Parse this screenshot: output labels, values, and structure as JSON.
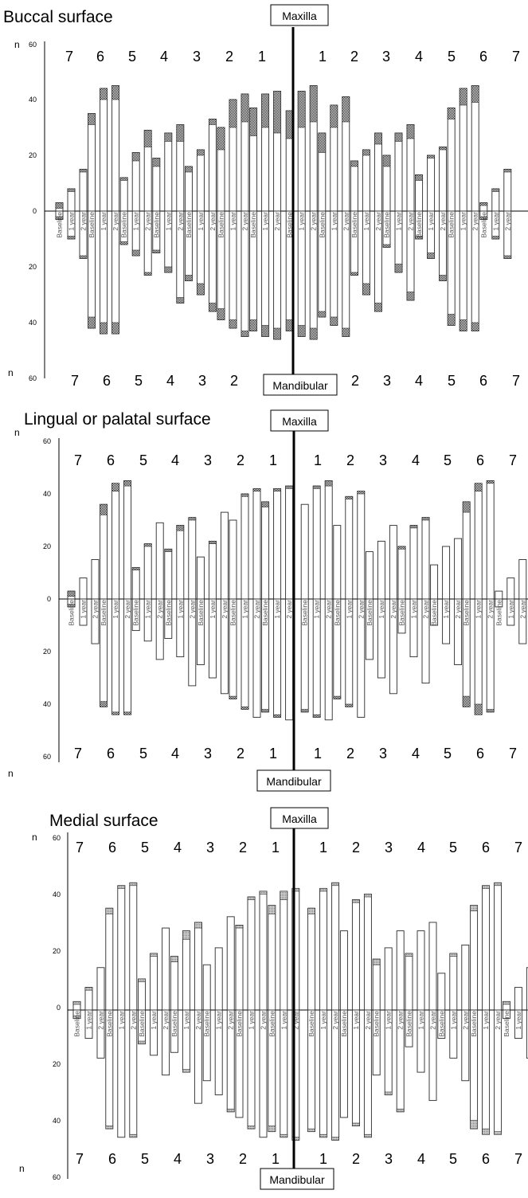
{
  "colors": {
    "bar_fill": "#ffffff",
    "bar_stroke": "#2a2a2a",
    "cap_dark": "#1c1c1c",
    "cap_grey": "#7a7a7a",
    "axis": "#000000",
    "midline": "#000000"
  },
  "chart_data": [
    {
      "type": "bar",
      "title": "Buccal surface",
      "top_label": "Maxilla",
      "bottom_label": "Mandibular",
      "ylabel_top": "n",
      "ylabel_bottom": "n",
      "yticks": [
        "60",
        "40",
        "20",
        "0",
        "20",
        "40",
        "60"
      ],
      "ylim": [
        -60,
        60
      ],
      "teeth": [
        "7",
        "6",
        "5",
        "4",
        "3",
        "2",
        "1",
        "1",
        "2",
        "3",
        "4",
        "5",
        "6",
        "7"
      ],
      "bar_labels": [
        "Baseline",
        "1 year",
        "2 year"
      ],
      "cap_style": "checker",
      "series": [
        {
          "name": "Baseline",
          "maxilla": [
            3,
            35,
            12,
            19,
            16,
            30,
            37,
            36,
            28,
            18,
            20,
            13,
            37,
            3
          ],
          "mandibular": [
            3,
            42,
            12,
            15,
            25,
            39,
            43,
            43,
            38,
            23,
            13,
            10,
            41,
            3
          ]
        },
        {
          "name": "1 year",
          "maxilla": [
            8,
            44,
            21,
            28,
            22,
            40,
            42,
            43,
            38,
            22,
            28,
            20,
            44,
            8
          ],
          "mandibular": [
            10,
            44,
            16,
            22,
            30,
            42,
            45,
            45,
            41,
            30,
            22,
            17,
            43,
            10
          ]
        },
        {
          "name": "2 year",
          "maxilla": [
            15,
            45,
            29,
            31,
            33,
            42,
            43,
            45,
            41,
            28,
            31,
            23,
            45,
            15
          ],
          "mandibular": [
            17,
            44,
            23,
            33,
            36,
            45,
            46,
            46,
            45,
            36,
            32,
            25,
            43,
            17
          ]
        }
      ],
      "caps": {
        "maxilla": [
          [
            2,
            1,
            1
          ],
          [
            4,
            4,
            5
          ],
          [
            1,
            3,
            6
          ],
          [
            3,
            3,
            6
          ],
          [
            2,
            2,
            2
          ],
          [
            8,
            10,
            10
          ],
          [
            10,
            12,
            15
          ],
          [
            10,
            13,
            13
          ],
          [
            7,
            8,
            9
          ],
          [
            2,
            2,
            4
          ],
          [
            4,
            3,
            5
          ],
          [
            2,
            1,
            1
          ],
          [
            4,
            6,
            6
          ],
          [
            1,
            1,
            1
          ]
        ],
        "mandibular": [
          [
            1,
            1,
            1
          ],
          [
            4,
            4,
            4
          ],
          [
            1,
            2,
            1
          ],
          [
            1,
            2,
            2
          ],
          [
            2,
            4,
            3
          ],
          [
            4,
            3,
            2
          ],
          [
            4,
            4,
            4
          ],
          [
            4,
            4,
            4
          ],
          [
            2,
            3,
            3
          ],
          [
            1,
            4,
            3
          ],
          [
            1,
            3,
            3
          ],
          [
            1,
            2,
            2
          ],
          [
            4,
            4,
            3
          ],
          [
            1,
            1,
            1
          ]
        ]
      }
    },
    {
      "type": "bar",
      "title": "Lingual or palatal surface",
      "top_label": "Maxilla",
      "bottom_label": "Mandibular",
      "ylabel_top": "n",
      "ylabel_bottom": "n",
      "yticks": [
        "60",
        "40",
        "20",
        "0",
        "20",
        "40",
        "60"
      ],
      "ylim": [
        -60,
        60
      ],
      "teeth": [
        "7",
        "6",
        "5",
        "4",
        "3",
        "2",
        "1",
        "1",
        "2",
        "3",
        "4",
        "5",
        "6",
        "7"
      ],
      "bar_labels": [
        "Baseline",
        "1 year",
        "2 year"
      ],
      "cap_style": "checker",
      "series": [
        {
          "name": "Baseline",
          "maxilla": [
            3,
            36,
            12,
            19,
            16,
            30,
            37,
            36,
            28,
            18,
            20,
            13,
            37,
            3
          ],
          "mandibular": [
            3,
            41,
            12,
            15,
            25,
            38,
            43,
            43,
            38,
            23,
            13,
            10,
            41,
            3
          ]
        },
        {
          "name": "1 year",
          "maxilla": [
            8,
            44,
            21,
            28,
            22,
            40,
            42,
            43,
            39,
            22,
            28,
            20,
            44,
            8
          ],
          "mandibular": [
            10,
            44,
            16,
            22,
            30,
            42,
            45,
            45,
            41,
            30,
            22,
            17,
            44,
            10
          ]
        },
        {
          "name": "2 year",
          "maxilla": [
            15,
            45,
            29,
            31,
            33,
            42,
            43,
            45,
            41,
            28,
            31,
            23,
            45,
            15
          ],
          "mandibular": [
            17,
            44,
            23,
            33,
            36,
            45,
            46,
            46,
            45,
            36,
            32,
            25,
            43,
            17
          ]
        }
      ],
      "caps": {
        "maxilla": [
          [
            2,
            0,
            0
          ],
          [
            4,
            3,
            2
          ],
          [
            1,
            1,
            0
          ],
          [
            1,
            2,
            1
          ],
          [
            0,
            1,
            0
          ],
          [
            0,
            1,
            1
          ],
          [
            2,
            1,
            1
          ],
          [
            0,
            1,
            2
          ],
          [
            0,
            1,
            1
          ],
          [
            0,
            0,
            0
          ],
          [
            1,
            1,
            1
          ],
          [
            0,
            0,
            0
          ],
          [
            4,
            3,
            1
          ],
          [
            0,
            0,
            0
          ]
        ],
        "mandibular": [
          [
            1,
            0,
            0
          ],
          [
            2,
            1,
            1
          ],
          [
            0,
            0,
            0
          ],
          [
            0,
            0,
            0
          ],
          [
            0,
            0,
            0
          ],
          [
            1,
            1,
            0
          ],
          [
            1,
            1,
            0
          ],
          [
            1,
            1,
            0
          ],
          [
            1,
            1,
            0
          ],
          [
            0,
            0,
            0
          ],
          [
            0,
            0,
            0
          ],
          [
            0,
            0,
            0
          ],
          [
            4,
            4,
            1
          ],
          [
            0,
            0,
            0
          ]
        ]
      }
    },
    {
      "type": "bar",
      "title": "Medial surface",
      "top_label": "Maxilla",
      "bottom_label": "Mandibular",
      "ylabel_top": "n",
      "ylabel_bottom": "n",
      "yticks": [
        "60",
        "40",
        "20",
        "0",
        "20",
        "40",
        "60"
      ],
      "ylim": [
        -60,
        60
      ],
      "teeth": [
        "7",
        "6",
        "5",
        "4",
        "3",
        "2",
        "1",
        "1",
        "2",
        "3",
        "4",
        "5",
        "6",
        "7"
      ],
      "bar_labels": [
        "Baseline",
        "1 year",
        "2 year"
      ],
      "cap_style": "grey",
      "series": [
        {
          "name": "Baseline",
          "maxilla": [
            3,
            36,
            11,
            19,
            16,
            30,
            37,
            36,
            28,
            18,
            20,
            13,
            37,
            3
          ],
          "mandibular": [
            3,
            42,
            12,
            15,
            25,
            38,
            43,
            43,
            38,
            23,
            13,
            10,
            42,
            3
          ]
        },
        {
          "name": "1 year",
          "maxilla": [
            8,
            44,
            20,
            28,
            22,
            40,
            42,
            43,
            39,
            22,
            28,
            20,
            44,
            8
          ],
          "mandibular": [
            10,
            45,
            16,
            22,
            30,
            42,
            45,
            45,
            41,
            30,
            22,
            17,
            44,
            10
          ]
        },
        {
          "name": "2 year",
          "maxilla": [
            15,
            45,
            29,
            31,
            33,
            42,
            43,
            45,
            41,
            28,
            31,
            23,
            45,
            15
          ],
          "mandibular": [
            17,
            45,
            23,
            33,
            36,
            45,
            46,
            46,
            45,
            36,
            32,
            25,
            44,
            17
          ]
        }
      ],
      "caps": {
        "maxilla": [
          [
            1,
            1,
            0
          ],
          [
            2,
            1,
            1
          ],
          [
            1,
            1,
            0
          ],
          [
            2,
            3,
            2
          ],
          [
            0,
            0,
            0
          ],
          [
            1,
            1,
            1
          ],
          [
            3,
            3,
            1
          ],
          [
            2,
            1,
            1
          ],
          [
            0,
            1,
            1
          ],
          [
            2,
            0,
            0
          ],
          [
            1,
            0,
            0
          ],
          [
            0,
            1,
            0
          ],
          [
            2,
            1,
            1
          ],
          [
            1,
            0,
            0
          ]
        ],
        "mandibular": [
          [
            1,
            0,
            0
          ],
          [
            1,
            0,
            1
          ],
          [
            1,
            0,
            0
          ],
          [
            0,
            1,
            0
          ],
          [
            0,
            0,
            1
          ],
          [
            0,
            1,
            0
          ],
          [
            2,
            1,
            1
          ],
          [
            1,
            1,
            1
          ],
          [
            0,
            1,
            1
          ],
          [
            0,
            1,
            1
          ],
          [
            0,
            0,
            0
          ],
          [
            0,
            0,
            0
          ],
          [
            3,
            2,
            1
          ],
          [
            0,
            0,
            0
          ]
        ]
      }
    }
  ]
}
